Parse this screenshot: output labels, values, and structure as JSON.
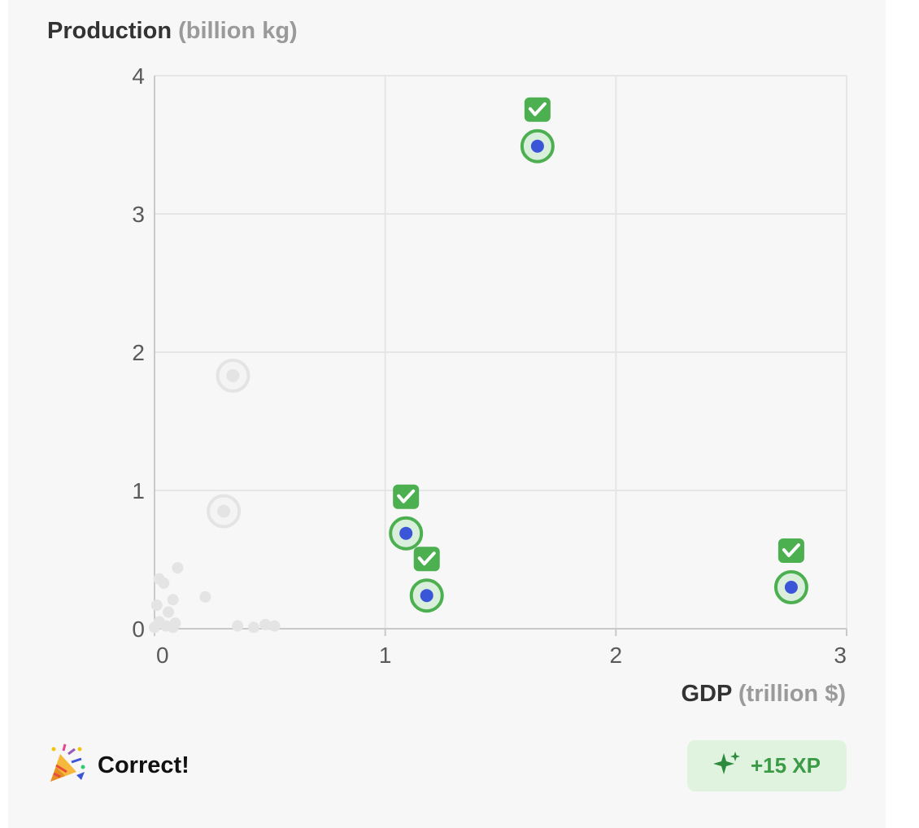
{
  "colors": {
    "panel_bg": "#f7f7f7",
    "grid": "#e6e6e6",
    "axis": "#c9c9c9",
    "correct_green": "#4caf50",
    "point_blue": "#3b55d8",
    "faded_point": "#e4e4e4",
    "xp_badge_bg": "#dff3df",
    "xp_text": "#3a9a45"
  },
  "chart_data": {
    "type": "scatter",
    "ylabel": "Production",
    "ylabel_unit": "(billion kg)",
    "xlabel": "GDP",
    "xlabel_unit": "(trillion $)",
    "xlim": [
      0,
      3
    ],
    "ylim": [
      0,
      4
    ],
    "xticks": [
      "0",
      "1",
      "2",
      "3"
    ],
    "yticks": [
      "0",
      "1",
      "2",
      "3",
      "4"
    ],
    "grid": true,
    "selected_correct": [
      {
        "x": 1.66,
        "y": 3.49
      },
      {
        "x": 1.09,
        "y": 0.69
      },
      {
        "x": 1.18,
        "y": 0.24
      },
      {
        "x": 2.76,
        "y": 0.3
      }
    ],
    "faded_targets": [
      {
        "x": 0.34,
        "y": 1.83
      },
      {
        "x": 0.3,
        "y": 0.85
      }
    ],
    "background_points": [
      {
        "x": 0.02,
        "y": 0.36
      },
      {
        "x": 0.04,
        "y": 0.33
      },
      {
        "x": 0.1,
        "y": 0.44
      },
      {
        "x": 0.01,
        "y": 0.17
      },
      {
        "x": 0.08,
        "y": 0.21
      },
      {
        "x": 0.06,
        "y": 0.12
      },
      {
        "x": 0.22,
        "y": 0.23
      },
      {
        "x": 0.02,
        "y": 0.05
      },
      {
        "x": 0.05,
        "y": 0.02
      },
      {
        "x": 0.09,
        "y": 0.04
      },
      {
        "x": 0.0,
        "y": 0.01
      },
      {
        "x": 0.08,
        "y": 0.01
      },
      {
        "x": 0.36,
        "y": 0.02
      },
      {
        "x": 0.43,
        "y": 0.01
      },
      {
        "x": 0.48,
        "y": 0.03
      },
      {
        "x": 0.52,
        "y": 0.02
      }
    ]
  },
  "result": {
    "label": "Correct!",
    "emoji_icon": "party-popper-icon"
  },
  "xp": {
    "label": "+15 XP",
    "icon": "sparkle-icon"
  }
}
